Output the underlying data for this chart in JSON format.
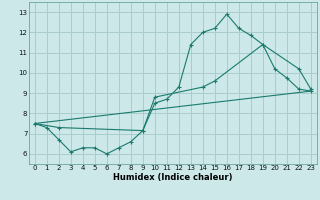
{
  "xlabel": "Humidex (Indice chaleur)",
  "bg_color": "#cce8e8",
  "grid_color": "#aacccc",
  "line_color": "#1a7a6e",
  "xlim": [
    -0.5,
    23.5
  ],
  "ylim": [
    5.5,
    13.5
  ],
  "xticks": [
    0,
    1,
    2,
    3,
    4,
    5,
    6,
    7,
    8,
    9,
    10,
    11,
    12,
    13,
    14,
    15,
    16,
    17,
    18,
    19,
    20,
    21,
    22,
    23
  ],
  "yticks": [
    6,
    7,
    8,
    9,
    10,
    11,
    12,
    13
  ],
  "line1_x": [
    0,
    1,
    2,
    3,
    4,
    5,
    6,
    7,
    8,
    9,
    10,
    11,
    12,
    13,
    14,
    15,
    16,
    17,
    18,
    19,
    20,
    21,
    22,
    23
  ],
  "line1_y": [
    7.5,
    7.3,
    6.7,
    6.1,
    6.3,
    6.3,
    6.0,
    6.3,
    6.6,
    7.15,
    8.5,
    8.7,
    9.3,
    11.4,
    12.0,
    12.2,
    12.9,
    12.2,
    11.85,
    11.4,
    10.2,
    9.75,
    9.2,
    9.1
  ],
  "line2_x": [
    0,
    2,
    9,
    10,
    14,
    15,
    19,
    22,
    23
  ],
  "line2_y": [
    7.5,
    7.3,
    7.15,
    8.8,
    9.3,
    9.6,
    11.4,
    10.2,
    9.2
  ],
  "line3_x": [
    0,
    23
  ],
  "line3_y": [
    7.5,
    9.1
  ],
  "xlabel_fontsize": 6.0,
  "tick_fontsize": 5.0
}
